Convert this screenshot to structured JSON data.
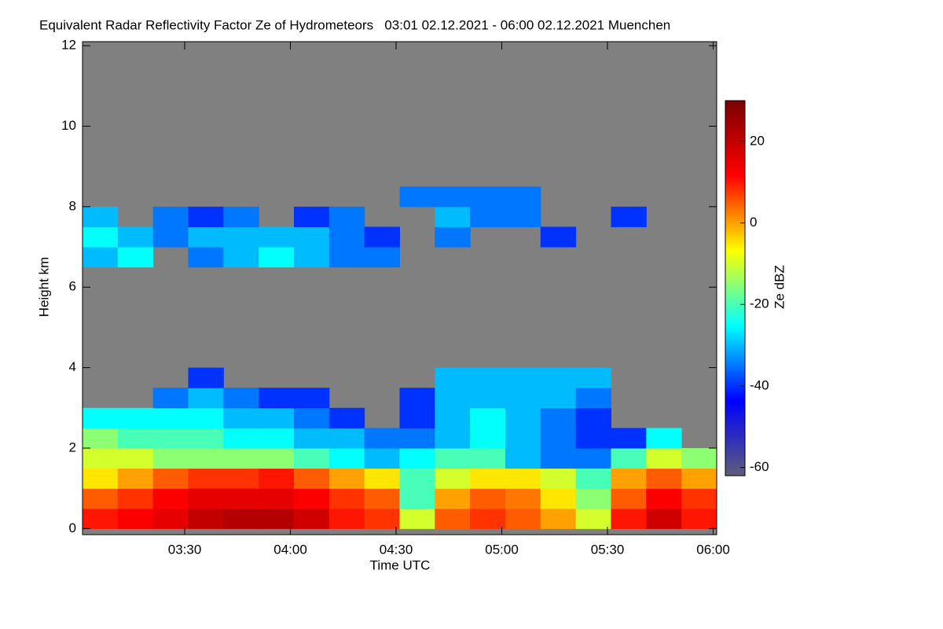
{
  "chart_data": {
    "type": "heatmap",
    "title": "Equivalent Radar Reflectivity Factor Ze of Hydrometeors   03:01 02.12.2021 - 06:00 02.12.2021 Muenchen",
    "x_label": "Time UTC",
    "y_label": "Height km",
    "colorbar_label": "Ze dBZ",
    "xlim": [
      181,
      361
    ],
    "xticks": [
      {
        "value": 210,
        "label": "03:30"
      },
      {
        "value": 240,
        "label": "04:00"
      },
      {
        "value": 270,
        "label": "04:30"
      },
      {
        "value": 300,
        "label": "05:00"
      },
      {
        "value": 330,
        "label": "05:30"
      },
      {
        "value": 360,
        "label": "06:00"
      }
    ],
    "ylim": [
      -0.15,
      12.1
    ],
    "yticks": [
      0,
      2,
      4,
      6,
      8,
      10,
      12
    ],
    "zlim": [
      -62,
      30
    ],
    "zticks": [
      -60,
      -40,
      -20,
      0,
      20
    ],
    "background_color": "#808080",
    "colormap": [
      "#5e5e78",
      "#0000ff",
      "#00ffff",
      "#ffff00",
      "#ff0000",
      "#7a0000"
    ],
    "xbins": [
      181,
      191,
      201,
      211,
      221,
      231,
      241,
      251,
      261,
      271,
      281,
      291,
      301,
      311,
      321,
      331,
      341,
      351,
      361
    ],
    "ybins": [
      0,
      0.5,
      1,
      1.5,
      2,
      2.5,
      3,
      3.5,
      4,
      4.5,
      5,
      5.5,
      6,
      6.5,
      7,
      7.5,
      8,
      8.5
    ],
    "z": [
      [
        10,
        12,
        15,
        20,
        22,
        22,
        18,
        10,
        8,
        -10,
        5,
        8,
        5,
        0,
        -10,
        10,
        18,
        10
      ],
      [
        5,
        8,
        12,
        15,
        15,
        15,
        12,
        8,
        5,
        -20,
        0,
        5,
        3,
        -5,
        -15,
        5,
        12,
        8
      ],
      [
        -5,
        0,
        5,
        8,
        8,
        10,
        5,
        0,
        -5,
        -20,
        -10,
        -5,
        -5,
        -10,
        -20,
        0,
        5,
        0
      ],
      [
        -10,
        -10,
        -15,
        -15,
        -15,
        -15,
        -20,
        -25,
        -30,
        -25,
        -20,
        -20,
        -30,
        -35,
        -35,
        -20,
        -10,
        -15
      ],
      [
        -15,
        -20,
        -20,
        -20,
        -25,
        -25,
        -30,
        -30,
        -35,
        -35,
        -30,
        -25,
        -30,
        -35,
        -40,
        -40,
        -25,
        null
      ],
      [
        -25,
        -25,
        -25,
        -25,
        -30,
        -30,
        -35,
        -40,
        null,
        -40,
        -30,
        -25,
        -30,
        -35,
        -40,
        null,
        null,
        null
      ],
      [
        null,
        null,
        -35,
        -30,
        -35,
        -40,
        -40,
        null,
        null,
        -40,
        -30,
        -30,
        -30,
        -30,
        -35,
        null,
        null,
        null
      ],
      [
        null,
        null,
        null,
        -40,
        null,
        null,
        null,
        null,
        null,
        null,
        -30,
        -30,
        -30,
        -30,
        -30,
        null,
        null,
        null
      ],
      [
        null,
        null,
        null,
        null,
        null,
        null,
        null,
        null,
        null,
        null,
        null,
        null,
        null,
        null,
        null,
        null,
        null,
        null
      ],
      [
        null,
        null,
        null,
        null,
        null,
        null,
        null,
        null,
        null,
        null,
        null,
        null,
        null,
        null,
        null,
        null,
        null,
        null
      ],
      [
        null,
        null,
        null,
        null,
        null,
        null,
        null,
        null,
        null,
        null,
        null,
        null,
        null,
        null,
        null,
        null,
        null,
        null
      ],
      [
        null,
        null,
        null,
        null,
        null,
        null,
        null,
        null,
        null,
        null,
        null,
        null,
        null,
        null,
        null,
        null,
        null,
        null
      ],
      [
        null,
        null,
        null,
        null,
        null,
        null,
        null,
        null,
        null,
        null,
        null,
        null,
        null,
        null,
        null,
        null,
        null,
        null
      ],
      [
        -30,
        -25,
        null,
        -35,
        -30,
        -25,
        -30,
        -35,
        -35,
        null,
        null,
        null,
        null,
        null,
        null,
        null,
        null,
        null
      ],
      [
        -25,
        -30,
        -35,
        -30,
        -30,
        -30,
        -30,
        -35,
        -40,
        null,
        -35,
        null,
        null,
        -40,
        null,
        null,
        null,
        null
      ],
      [
        -30,
        null,
        -35,
        -40,
        -35,
        null,
        -40,
        -35,
        null,
        null,
        -30,
        -35,
        -35,
        null,
        null,
        -40,
        null,
        null
      ],
      [
        null,
        null,
        null,
        null,
        null,
        null,
        null,
        null,
        null,
        -35,
        -35,
        -35,
        -35,
        null,
        null,
        null,
        null,
        null
      ]
    ]
  }
}
